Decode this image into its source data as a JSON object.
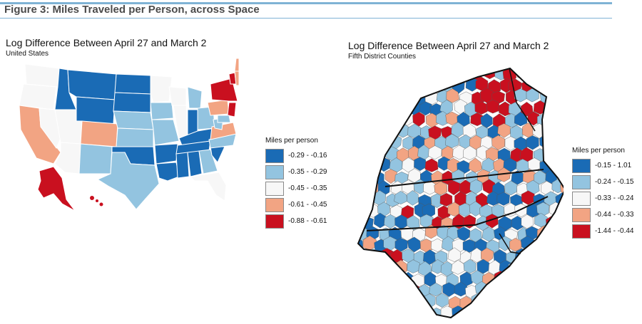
{
  "figure_title": "Figure 3: Miles Traveled per Person, across Space",
  "maps": [
    {
      "title": "Log Difference Between April 27 and March 2",
      "subtitle": "United States",
      "legend_title": "Miles per person",
      "legend": [
        {
          "label": "-0.29 - -0.16",
          "color": "#1a6bb5"
        },
        {
          "label": "-0.35 - -0.29",
          "color": "#93c4e0"
        },
        {
          "label": "-0.45 - -0.35",
          "color": "#f7f7f7"
        },
        {
          "label": "-0.61 - -0.45",
          "color": "#f2a483"
        },
        {
          "label": "-0.88 - -0.61",
          "color": "#c9101f"
        }
      ]
    },
    {
      "title": "Log Difference Between April 27 and March 2",
      "subtitle": "Fifth District Counties",
      "legend_title": "Miles per person",
      "legend": [
        {
          "label": "-0.15 - 1.01",
          "color": "#1a6bb5"
        },
        {
          "label": "-0.24 - -0.15",
          "color": "#93c4e0"
        },
        {
          "label": "-0.33 - -0.24",
          "color": "#f7f7f7"
        },
        {
          "label": "-0.44 - -0.33",
          "color": "#f2a483"
        },
        {
          "label": "-1.44 - -0.44",
          "color": "#c9101f"
        }
      ]
    }
  ]
}
